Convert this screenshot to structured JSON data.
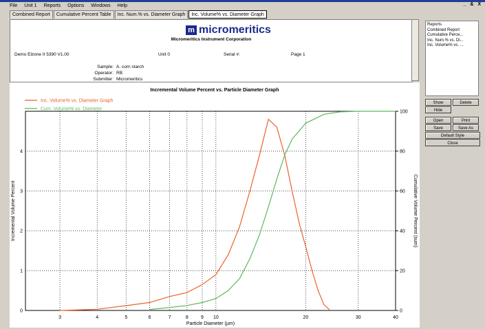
{
  "app": {
    "menu": [
      "File",
      "Unit 1",
      "Reports",
      "Options",
      "Windows",
      "Help"
    ],
    "window_controls": "_ & X",
    "tabs": [
      "Combined Report",
      "Cumulative Percent Table",
      "Inc. Num.% vs. Diameter Graph",
      "Inc. Volume% vs. Diameter Graph"
    ]
  },
  "report": {
    "logo": "micromeritics",
    "company": "Micromeritics Instrument Corporation",
    "instrument": "Demo Elzone II 5390 V1.00",
    "unit": "Unit 0",
    "serial": "Serial #:",
    "page": "Page 1",
    "sample_label": "Sample:",
    "sample": "A. corn starch",
    "operator_label": "Operator:",
    "operator": "RB",
    "submitter_label": "Submitter:",
    "submitter": "Micromeritics"
  },
  "panel": {
    "list_title": "Reports",
    "items": [
      "Combined Report",
      "Cumulative Perce...",
      "Inc. Num.% vs. Di...",
      "Inc. Volume% vs. ..."
    ],
    "buttons": [
      "Show",
      "Delete",
      "Hide",
      "Open",
      "Print",
      "Save",
      "Save As",
      "Default Style",
      "Close"
    ]
  },
  "chart_data": {
    "type": "line",
    "title": "Incremental Volume Percent vs. Particle Diameter Graph",
    "x_label": "Particle Diameter (µm)",
    "y_label": "Incremental Volume Percent",
    "y2_label": "Cumulative Volume Percent (sum)",
    "log_x": true,
    "grid": true,
    "xlim": [
      2.3,
      40
    ],
    "xticks": [
      3,
      4,
      5,
      6,
      7,
      8,
      9,
      10,
      20,
      30,
      40
    ],
    "ylim": [
      0,
      5
    ],
    "yticks": [
      0,
      1,
      2,
      3,
      4
    ],
    "y2lim": [
      0,
      100
    ],
    "y2ticks": [
      0,
      20,
      40,
      60,
      80,
      100
    ],
    "series": [
      {
        "name": "Inc. Volume% vs. Diameter Graph",
        "color": "#e8622a",
        "x": [
          3,
          4,
          5,
          6,
          7,
          8,
          9,
          10,
          11,
          12,
          13,
          14,
          15,
          16,
          17,
          18,
          19,
          20,
          21,
          22,
          23,
          24
        ],
        "values": [
          0,
          0.03,
          0.12,
          0.2,
          0.35,
          0.45,
          0.65,
          0.9,
          1.4,
          2.1,
          3.0,
          3.9,
          4.8,
          4.6,
          3.9,
          3.0,
          2.2,
          1.6,
          1.0,
          0.5,
          0.15,
          0.02
        ]
      },
      {
        "name": "Cum. Volume% vs. Diameter",
        "color": "#5cb85c",
        "axis": "y2",
        "x": [
          6,
          7,
          8,
          9,
          10,
          11,
          12,
          13,
          14,
          15,
          16,
          17,
          18,
          20,
          23,
          26,
          30,
          40
        ],
        "values": [
          0.5,
          1.5,
          2.5,
          4,
          6,
          10,
          16,
          26,
          38,
          52,
          66,
          78,
          86,
          94,
          98.5,
          99.7,
          100,
          100
        ]
      }
    ]
  }
}
